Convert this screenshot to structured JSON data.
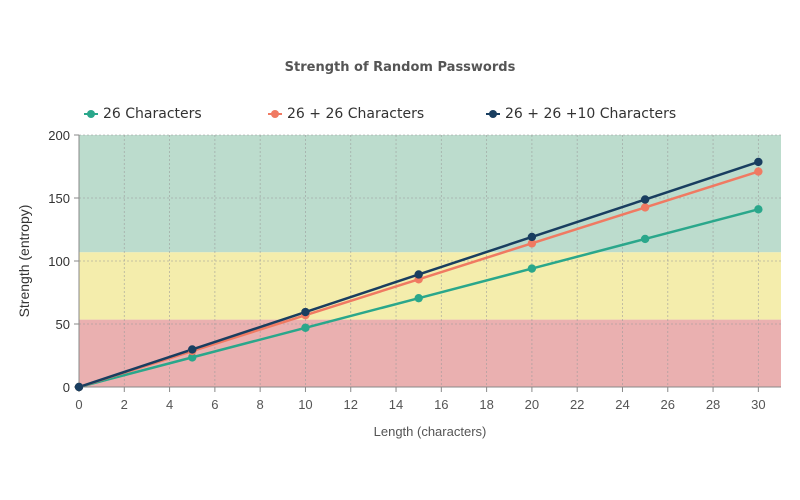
{
  "chart_data": {
    "type": "line",
    "title": "Strength of Random Passwords",
    "xlabel": "Length (characters)",
    "ylabel": "Strength (entropy)",
    "xlim": [
      0,
      31
    ],
    "ylim": [
      0,
      200
    ],
    "x_ticks": [
      0,
      2,
      4,
      6,
      8,
      10,
      12,
      14,
      16,
      18,
      20,
      22,
      24,
      26,
      28,
      30
    ],
    "y_ticks": [
      0,
      50,
      100,
      150,
      200
    ],
    "grid": true,
    "legend_position": "top",
    "bands": [
      {
        "from": 0,
        "to": 53.5,
        "color": "#eab0b0"
      },
      {
        "from": 53.5,
        "to": 107,
        "color": "#f4edac"
      },
      {
        "from": 107,
        "to": 200,
        "color": "#bcdccd"
      }
    ],
    "series": [
      {
        "name": "26 Characters",
        "color": "#2aa78b",
        "x": [
          0,
          5,
          10,
          15,
          20,
          25,
          30
        ],
        "y": [
          0,
          23.5,
          47,
          70.5,
          94,
          117.5,
          141
        ]
      },
      {
        "name": "26 + 26 Characters",
        "color": "#f07a62",
        "x": [
          0,
          5,
          10,
          15,
          20,
          25,
          30
        ],
        "y": [
          0,
          28.5,
          57,
          85.5,
          114,
          142.5,
          171
        ]
      },
      {
        "name": "26 + 26 +10 Characters",
        "color": "#193e60",
        "x": [
          0,
          5,
          10,
          15,
          20,
          25,
          30
        ],
        "y": [
          0,
          29.8,
          59.5,
          89.3,
          119.1,
          148.8,
          178.6
        ]
      }
    ]
  }
}
